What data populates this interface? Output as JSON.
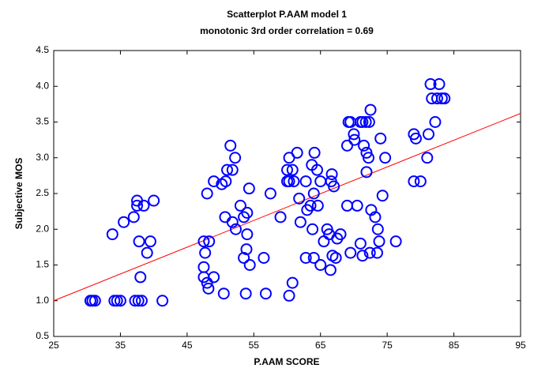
{
  "chart_data": {
    "type": "scatter",
    "title": "Scatterplot P.AAM model 1",
    "subtitle": "monotonic 3rd order correlation = 0.69",
    "x_label": "P.AAM  SCORE",
    "y_label": "Subjective MOS",
    "xlim": [
      25,
      95
    ],
    "ylim": [
      0.5,
      4.5
    ],
    "xticks": [
      25,
      35,
      45,
      55,
      65,
      75,
      85,
      95
    ],
    "yticks": [
      0.5,
      1.0,
      1.5,
      2.0,
      2.5,
      3.0,
      3.5,
      4.0,
      4.5
    ],
    "grid": false,
    "series": [
      {
        "color": "#0000ff",
        "x": [
          33.8,
          35.5,
          37,
          37.5,
          37.5,
          38.5,
          40,
          37.8,
          39.5,
          39,
          38,
          34.1,
          35,
          30.5,
          30.8,
          31.2,
          37.2,
          37.7,
          38.2,
          41.3,
          34.5,
          47.5,
          48.3,
          47.7,
          47.5,
          47.5,
          48,
          48.2,
          49,
          48,
          49,
          50.2,
          50.8,
          51,
          51.5,
          51.8,
          52.2,
          50.7,
          51.8,
          52.3,
          53,
          53.5,
          54,
          54.3,
          53.5,
          54,
          53.9,
          54.4,
          50.5,
          53.8,
          56.5,
          56.8,
          57.5,
          59,
          60,
          60,
          60.3,
          60.8,
          60.3,
          61,
          61.5,
          60.3,
          60.8,
          61.8,
          62,
          62.8,
          63,
          63.5,
          64,
          63.7,
          64.1,
          64.5,
          63.8,
          62.8,
          64,
          64.6,
          65,
          65.5,
          66,
          66.3,
          66.6,
          66.7,
          67,
          66.5,
          66.8,
          67.3,
          67.5,
          68,
          65,
          69,
          69.2,
          69.5,
          70,
          70.1,
          71,
          71.3,
          71.8,
          72.3,
          72.5,
          71.5,
          71.9,
          72.2,
          71.9,
          69,
          70.5,
          69.5,
          71,
          71.3,
          72.4,
          72.6,
          73.2,
          73.6,
          73.8,
          73.5,
          74,
          74.3,
          74.7,
          76.3,
          79,
          79.3,
          79,
          80,
          81,
          81.2,
          81.5,
          82.2,
          81.7,
          82.5,
          82.8,
          83.2,
          83.6
        ],
        "values": [
          1.93,
          2.1,
          2.17,
          2.33,
          2.4,
          2.33,
          2.4,
          1.83,
          1.83,
          1.67,
          1.33,
          1.0,
          1.0,
          1.0,
          1.0,
          1.0,
          1.0,
          1.0,
          1.0,
          1.0,
          1.0,
          1.83,
          1.83,
          1.67,
          1.47,
          1.33,
          1.25,
          1.17,
          1.33,
          2.5,
          2.67,
          2.63,
          2.67,
          2.83,
          3.17,
          2.83,
          3.0,
          2.17,
          2.1,
          2.0,
          2.33,
          2.17,
          2.23,
          2.57,
          1.6,
          1.93,
          1.72,
          1.5,
          1.1,
          1.1,
          1.6,
          1.1,
          2.5,
          2.17,
          2.67,
          2.83,
          3.0,
          2.83,
          2.67,
          2.67,
          3.07,
          1.07,
          1.25,
          2.43,
          2.1,
          2.67,
          2.27,
          2.33,
          2.5,
          2.9,
          3.07,
          2.83,
          2.0,
          1.6,
          1.6,
          2.33,
          1.5,
          1.83,
          2.0,
          1.93,
          2.67,
          2.77,
          2.6,
          1.43,
          1.63,
          1.6,
          1.87,
          1.93,
          2.67,
          3.17,
          3.5,
          3.5,
          3.33,
          3.25,
          3.5,
          3.5,
          3.5,
          3.5,
          3.67,
          3.17,
          3.07,
          3.0,
          2.8,
          2.33,
          2.33,
          1.67,
          1.8,
          1.63,
          1.67,
          2.27,
          2.17,
          2.0,
          1.83,
          1.67,
          3.27,
          2.47,
          3.0,
          1.83,
          3.33,
          3.27,
          2.67,
          2.67,
          3.0,
          3.33,
          4.03,
          3.5,
          3.83,
          3.83,
          4.03,
          3.83,
          3.83
        ]
      }
    ],
    "fit_line": {
      "color": "#ff0000",
      "x": [
        25,
        95
      ],
      "values": [
        1.0,
        3.62
      ]
    }
  }
}
